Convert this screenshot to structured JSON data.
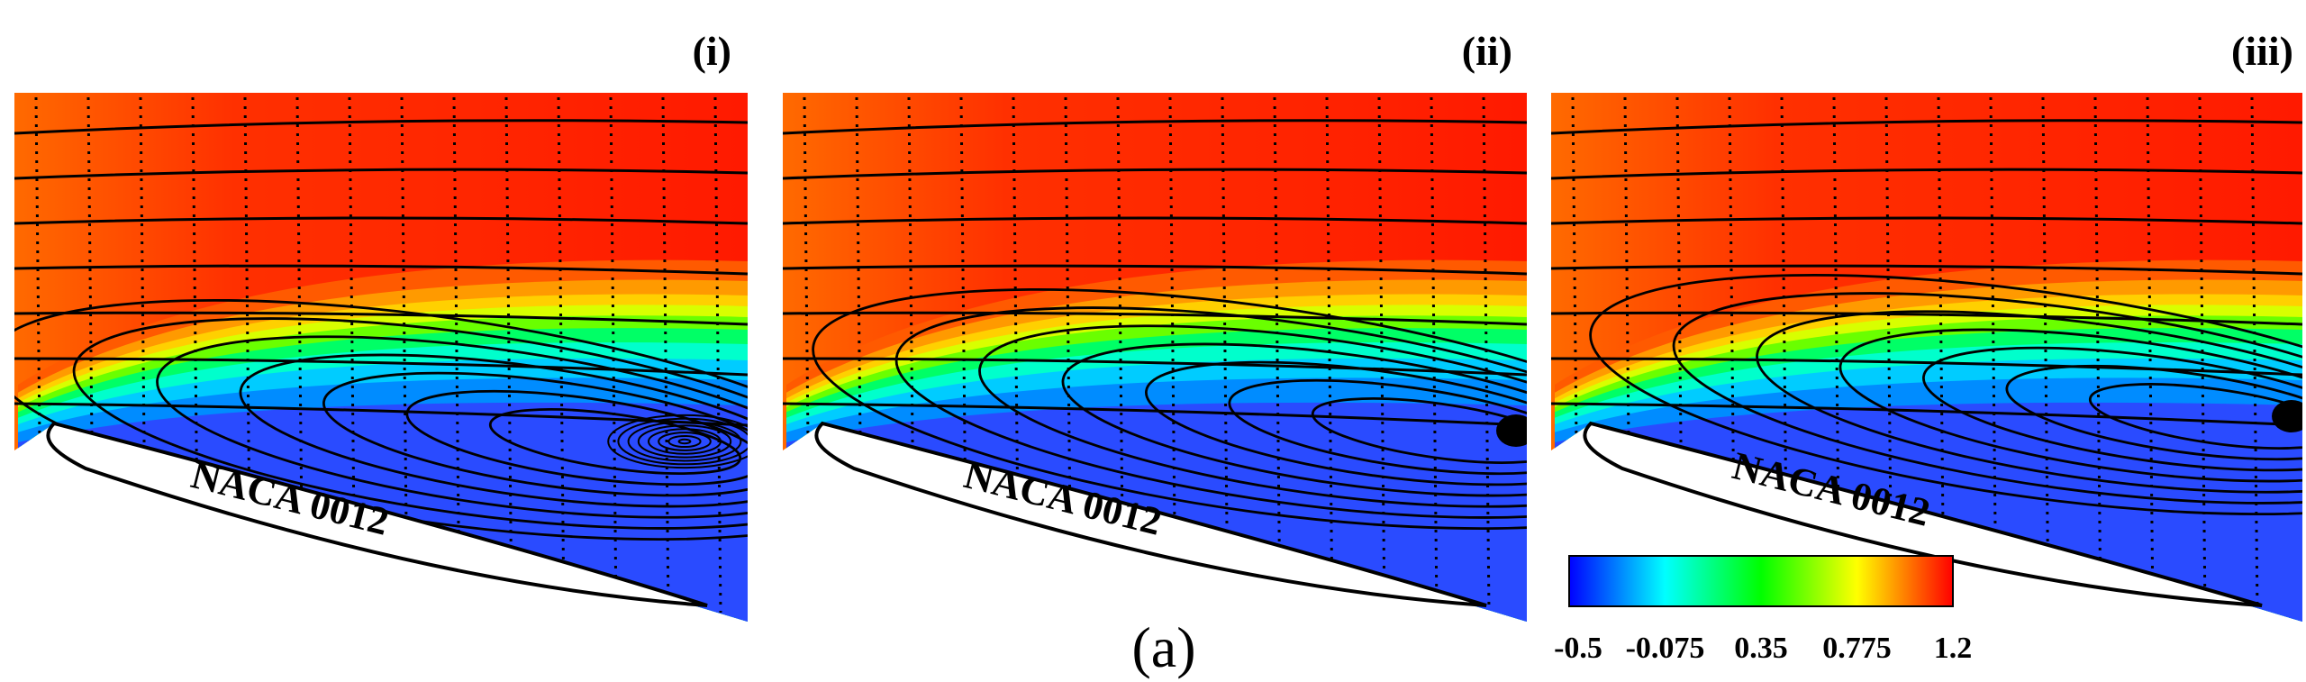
{
  "figure": {
    "caption": "(a)",
    "panels": [
      {
        "label": "(i)",
        "airfoil_label": "NACA 0012"
      },
      {
        "label": "(ii)",
        "airfoil_label": "NACA 0012"
      },
      {
        "label": "(iii)",
        "airfoil_label": "NACA 0012"
      }
    ],
    "colorbar": {
      "ticks": [
        "-0.5",
        "-0.075",
        "0.35",
        "0.775",
        "1.2"
      ],
      "min": -0.5,
      "max": 1.2,
      "colors": [
        "#0000ff",
        "#00ffff",
        "#00ff00",
        "#ffff00",
        "#ff0000"
      ]
    }
  }
}
